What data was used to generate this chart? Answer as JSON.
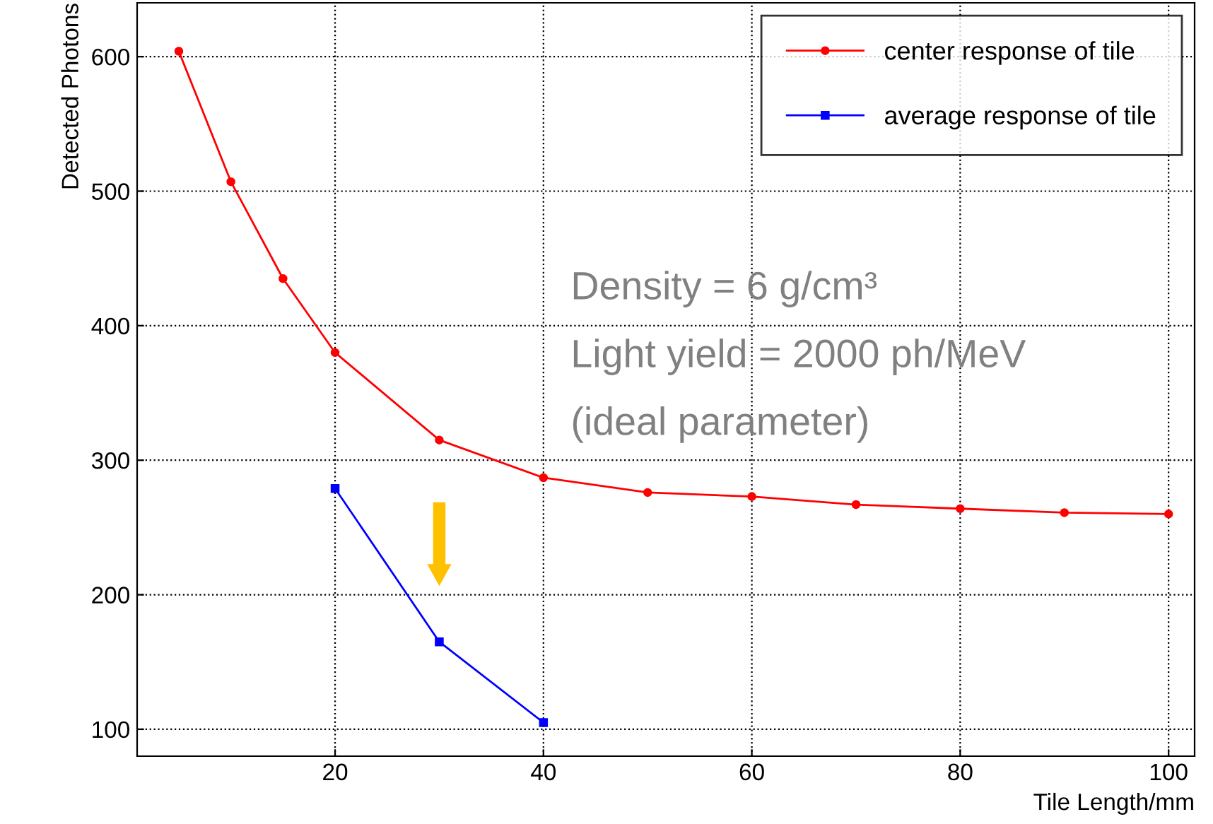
{
  "chart_data": {
    "type": "line",
    "xlabel": "Tile Length/mm",
    "ylabel": "Detected Photons",
    "xlim": [
      1,
      102.5
    ],
    "ylim": [
      80,
      640
    ],
    "xticks": [
      20,
      40,
      60,
      80,
      100
    ],
    "yticks": [
      100,
      200,
      300,
      400,
      500,
      600
    ],
    "grid": true,
    "legend": "top right",
    "series": [
      {
        "name": "center response of tile",
        "color": "#ff0000",
        "marker": "circle",
        "x": [
          5,
          10,
          15,
          20,
          30,
          40,
          50,
          60,
          70,
          80,
          90,
          100
        ],
        "values": [
          604,
          507,
          435,
          380,
          315,
          287,
          276,
          273,
          267,
          264,
          261,
          260
        ]
      },
      {
        "name": "average response of tile",
        "color": "#0000ff",
        "marker": "square",
        "x": [
          20,
          30,
          40
        ],
        "values": [
          279,
          165,
          105
        ]
      }
    ],
    "annotations": [
      "Density = 6 g/cm³",
      "Light yield = 2000 ph/MeV",
      "(ideal parameter)"
    ]
  }
}
